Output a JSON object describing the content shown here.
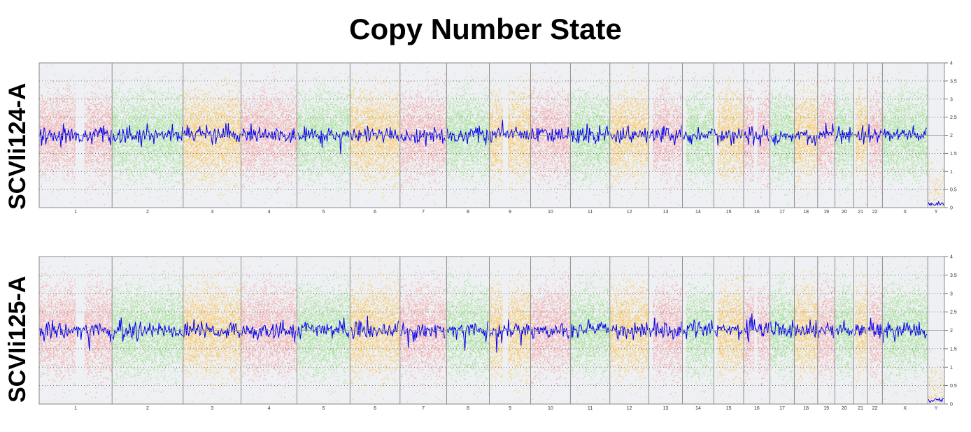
{
  "chart_data": {
    "type": "scatter",
    "title": "Copy Number State",
    "ylim": [
      0,
      4
    ],
    "yticks": [
      0,
      0.5,
      1,
      1.5,
      2,
      2.5,
      3,
      3.5,
      4
    ],
    "ytick_labels": [
      "0",
      "0.5",
      "1",
      "1.5",
      "2",
      "2.5",
      "3",
      "3.5",
      "4"
    ],
    "grid": true,
    "chromosomes": [
      {
        "name": "1",
        "size": 249,
        "color": "#f4a6a6"
      },
      {
        "name": "2",
        "size": 243,
        "color": "#9fe08f"
      },
      {
        "name": "3",
        "size": 198,
        "color": "#f8c45c"
      },
      {
        "name": "4",
        "size": 191,
        "color": "#f4a6a6"
      },
      {
        "name": "5",
        "size": 181,
        "color": "#9fe08f"
      },
      {
        "name": "6",
        "size": 171,
        "color": "#f8c45c"
      },
      {
        "name": "7",
        "size": 159,
        "color": "#f4a6a6"
      },
      {
        "name": "8",
        "size": 146,
        "color": "#9fe08f"
      },
      {
        "name": "9",
        "size": 141,
        "color": "#f8c45c"
      },
      {
        "name": "10",
        "size": 136,
        "color": "#f4a6a6"
      },
      {
        "name": "11",
        "size": 135,
        "color": "#9fe08f"
      },
      {
        "name": "12",
        "size": 133,
        "color": "#f8c45c"
      },
      {
        "name": "13",
        "size": 115,
        "color": "#f4a6a6"
      },
      {
        "name": "14",
        "size": 107,
        "color": "#9fe08f"
      },
      {
        "name": "15",
        "size": 102,
        "color": "#f8c45c"
      },
      {
        "name": "16",
        "size": 90,
        "color": "#f4a6a6"
      },
      {
        "name": "17",
        "size": 83,
        "color": "#9fe08f"
      },
      {
        "name": "18",
        "size": 80,
        "color": "#f8c45c"
      },
      {
        "name": "19",
        "size": 59,
        "color": "#f4a6a6"
      },
      {
        "name": "20",
        "size": 64,
        "color": "#9fe08f"
      },
      {
        "name": "21",
        "size": 47,
        "color": "#f8c45c"
      },
      {
        "name": "22",
        "size": 51,
        "color": "#f4a6a6"
      },
      {
        "name": "X",
        "size": 155,
        "color": "#9fe08f"
      },
      {
        "name": "Y",
        "size": 57,
        "color": "#f8c45c"
      }
    ],
    "series": [
      {
        "name": "SCVIi124-A",
        "baseline_copy_number": 2,
        "chrY_copy_number": 0.1,
        "segment_color": "#0000ee"
      },
      {
        "name": "SCVIi125-A",
        "baseline_copy_number": 2,
        "chrY_copy_number": 0.1,
        "segment_color": "#0000ee"
      }
    ]
  },
  "labels": {
    "title": "Copy Number State",
    "panel_0": "SCVIi124-A",
    "panel_1": "SCVIi125-A"
  }
}
